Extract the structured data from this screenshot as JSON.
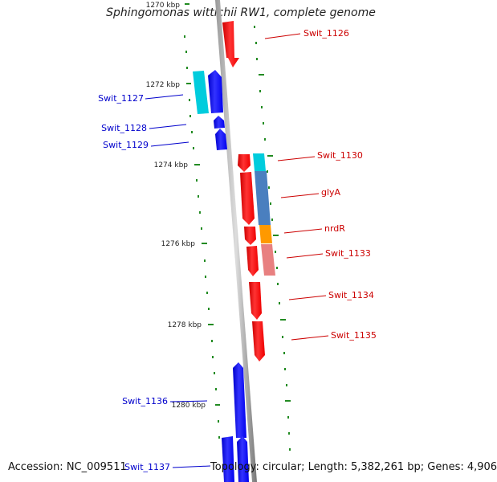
{
  "title": "Sphingomonas wittichii RW1, complete genome",
  "accession": "Accession: NC_009511",
  "topology": "Topology: circular; Length: 5,382,261 bp; Genes: 4,906",
  "ticks": [
    "1270 kbp",
    "1272 kbp",
    "1274 kbp",
    "1276 kbp",
    "1278 kbp",
    "1280 kbp"
  ],
  "genes_right": [
    {
      "label": "Swit_1126",
      "color": "#ff0000"
    },
    {
      "label": "Swit_1130",
      "color": "#ff0000"
    },
    {
      "label": "glyA",
      "color": "#ff0000"
    },
    {
      "label": "nrdR",
      "color": "#ff0000"
    },
    {
      "label": "Swit_1133",
      "color": "#ff0000"
    },
    {
      "label": "Swit_1134",
      "color": "#ff0000"
    },
    {
      "label": "Swit_1135",
      "color": "#ff0000"
    }
  ],
  "genes_left": [
    {
      "label": "Swit_1127",
      "color": "#0000ff"
    },
    {
      "label": "Swit_1128",
      "color": "#0000ff"
    },
    {
      "label": "Swit_1129",
      "color": "#0000ff"
    },
    {
      "label": "Swit_1136",
      "color": "#0000ff"
    },
    {
      "label": "Swit_1137",
      "color": "#0000ff"
    }
  ],
  "colors": {
    "forward": "#ff0000",
    "reverse": "#0000ff",
    "cyan": "#00ccdd",
    "steelblue": "#4a7fbf",
    "orange": "#ff9900",
    "pink": "#e88080",
    "tick": "#228B22",
    "backbone": "#888888"
  }
}
